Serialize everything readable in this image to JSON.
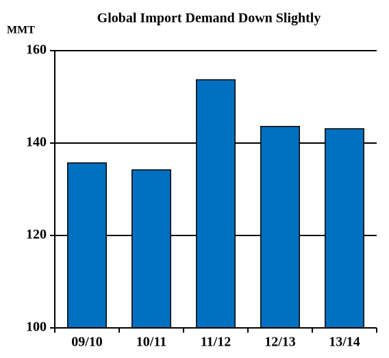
{
  "chart_data": {
    "type": "bar",
    "title": "Global Import Demand Down Slightly",
    "y_label": "MMT",
    "categories": [
      "09/10",
      "10/11",
      "11/12",
      "12/13",
      "13/14"
    ],
    "values": [
      135.7,
      134.2,
      153.7,
      143.6,
      143.1
    ],
    "color": "#0070c0",
    "ylim": [
      100,
      160
    ],
    "yticks": [
      100,
      120,
      140,
      160
    ],
    "grid": true
  }
}
